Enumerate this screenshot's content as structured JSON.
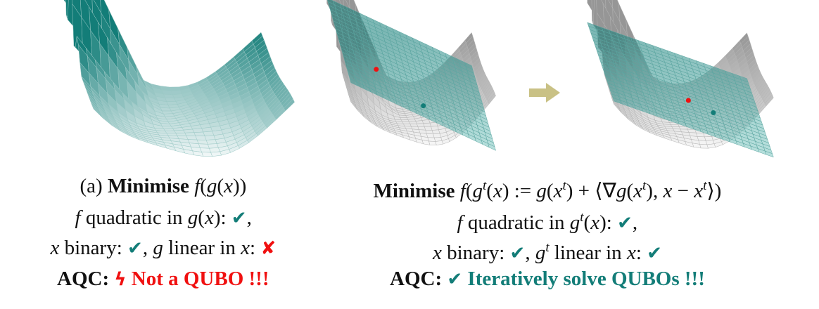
{
  "colors": {
    "teal": "#137d78",
    "red": "#f01010",
    "arrow": "#c9c185",
    "surface_grey": "#cfcfcf"
  },
  "panels": [
    {
      "label": "(a)",
      "surface": "non-linear landscape (teal)"
    },
    {
      "surface": "landscape with linearisation plane at x^t",
      "dots": [
        "red",
        "teal"
      ]
    },
    {
      "surface": "landscape with updated linearisation plane",
      "dots": [
        "red",
        "teal"
      ]
    }
  ],
  "arrow_icon": "right-arrow",
  "left_text": {
    "lines": [
      [
        {
          "t": "(a)  ",
          "s": ""
        },
        {
          "t": "Minimise",
          "s": "b"
        },
        {
          "t": " f",
          "s": "i"
        },
        {
          "t": "(",
          "s": ""
        },
        {
          "t": "g",
          "s": "i"
        },
        {
          "t": "(",
          "s": ""
        },
        {
          "t": "x",
          "s": "i"
        },
        {
          "t": "))",
          "s": ""
        }
      ],
      [
        {
          "t": "f",
          "s": "i"
        },
        {
          "t": " quadratic in ",
          "s": ""
        },
        {
          "t": "g",
          "s": "i"
        },
        {
          "t": "(",
          "s": ""
        },
        {
          "t": "x",
          "s": "i"
        },
        {
          "t": "): ",
          "s": ""
        },
        {
          "t": "✔",
          "s": "teal sym"
        },
        {
          "t": ",",
          "s": ""
        }
      ],
      [
        {
          "t": "x",
          "s": "i"
        },
        {
          "t": " binary: ",
          "s": ""
        },
        {
          "t": "✔",
          "s": "teal sym"
        },
        {
          "t": ", ",
          "s": ""
        },
        {
          "t": "g",
          "s": "i"
        },
        {
          "t": " linear in ",
          "s": ""
        },
        {
          "t": "x",
          "s": "i"
        },
        {
          "t": ": ",
          "s": ""
        },
        {
          "t": "✘",
          "s": "red sym"
        }
      ],
      [
        {
          "t": "AQC:  ",
          "s": "b"
        },
        {
          "t": "ϟ",
          "s": "red b sym"
        },
        {
          "t": " Not a QUBO !!!",
          "s": "red b"
        }
      ]
    ]
  },
  "right_text": {
    "lines": [
      [
        {
          "t": "Minimise",
          "s": "b"
        },
        {
          "t": " f",
          "s": "i"
        },
        {
          "t": "(",
          "s": ""
        },
        {
          "t": "g",
          "s": "i"
        },
        {
          "t": "t",
          "s": "sup"
        },
        {
          "t": "(",
          "s": ""
        },
        {
          "t": "x",
          "s": "i"
        },
        {
          "t": ") := ",
          "s": ""
        },
        {
          "t": "g",
          "s": "i"
        },
        {
          "t": "(",
          "s": ""
        },
        {
          "t": "x",
          "s": "i"
        },
        {
          "t": "t",
          "s": "sup"
        },
        {
          "t": ") + ⟨∇",
          "s": ""
        },
        {
          "t": "g",
          "s": "i"
        },
        {
          "t": "(",
          "s": ""
        },
        {
          "t": "x",
          "s": "i"
        },
        {
          "t": "t",
          "s": "sup"
        },
        {
          "t": "), ",
          "s": ""
        },
        {
          "t": "x",
          "s": "i"
        },
        {
          "t": " − ",
          "s": ""
        },
        {
          "t": "x",
          "s": "i"
        },
        {
          "t": "t",
          "s": "sup"
        },
        {
          "t": "⟩)",
          "s": ""
        }
      ],
      [
        {
          "t": "f",
          "s": "i"
        },
        {
          "t": " quadratic in ",
          "s": ""
        },
        {
          "t": "g",
          "s": "i"
        },
        {
          "t": "t",
          "s": "sup"
        },
        {
          "t": "(",
          "s": ""
        },
        {
          "t": "x",
          "s": "i"
        },
        {
          "t": "): ",
          "s": ""
        },
        {
          "t": "✔",
          "s": "teal sym"
        },
        {
          "t": ",",
          "s": ""
        }
      ],
      [
        {
          "t": "x",
          "s": "i"
        },
        {
          "t": " binary: ",
          "s": ""
        },
        {
          "t": "✔",
          "s": "teal sym"
        },
        {
          "t": ", ",
          "s": ""
        },
        {
          "t": "g",
          "s": "i"
        },
        {
          "t": "t",
          "s": "sup"
        },
        {
          "t": " linear in ",
          "s": ""
        },
        {
          "t": "x",
          "s": "i"
        },
        {
          "t": ": ",
          "s": ""
        },
        {
          "t": "✔",
          "s": "teal sym"
        }
      ],
      [
        {
          "t": "AQC:  ",
          "s": "b"
        },
        {
          "t": "✔",
          "s": "teal sym"
        },
        {
          "t": " Iteratively solve QUBOs !!!",
          "s": "teal b"
        }
      ]
    ]
  }
}
